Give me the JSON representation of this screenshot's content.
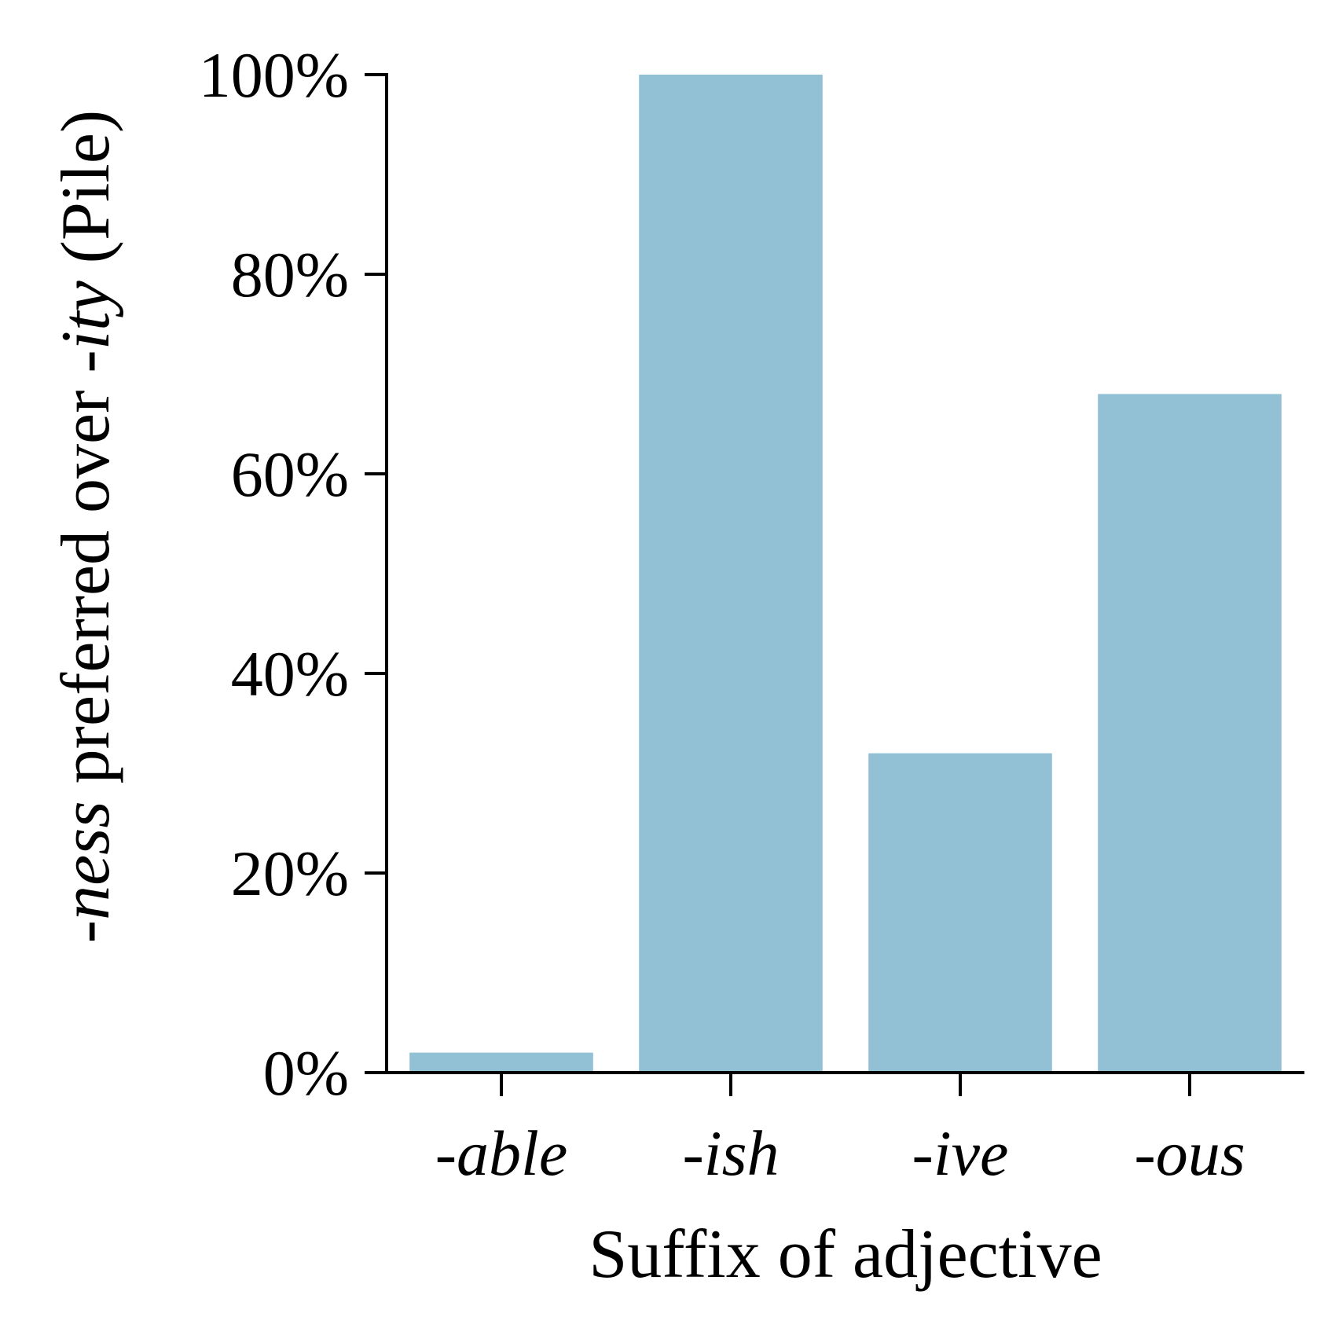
{
  "chart_data": {
    "type": "bar",
    "categories": [
      "-able",
      "-ish",
      "-ive",
      "-ous"
    ],
    "values": [
      2,
      100,
      32,
      68
    ],
    "xlabel": "Suffix of adjective",
    "ylabel": {
      "parts": [
        {
          "text": "-ness",
          "italic": true
        },
        {
          "text": " preferred over ",
          "italic": false
        },
        {
          "text": "-ity",
          "italic": true
        },
        {
          "text": " (Pile)",
          "italic": false
        }
      ]
    },
    "ylim": [
      0,
      100
    ],
    "yticks": [
      "0%",
      "20%",
      "40%",
      "60%",
      "80%",
      "100%"
    ],
    "grid": false,
    "legend": "none",
    "bar_color": "#92c0d5"
  }
}
